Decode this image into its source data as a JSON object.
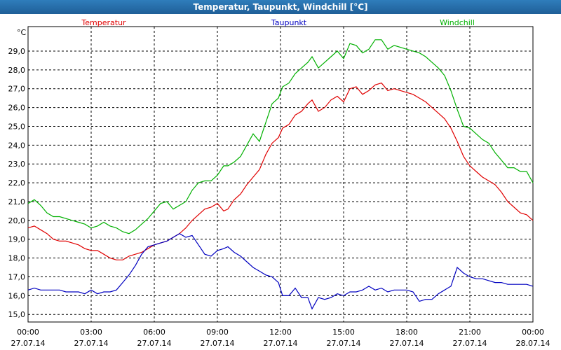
{
  "window": {
    "title": "Temperatur, Taupunkt, Windchill [°C]"
  },
  "chart_data": {
    "type": "line",
    "title": "Temperatur, Taupunkt, Windchill [°C]",
    "ylabel": "°C",
    "ylim": [
      14.6,
      30.3
    ],
    "yticks": [
      "15,0",
      "16,0",
      "17,0",
      "18,0",
      "19,0",
      "20,0",
      "21,0",
      "22,0",
      "23,0",
      "24,0",
      "25,0",
      "26,0",
      "27,0",
      "28,0",
      "29,0"
    ],
    "xlim": [
      0,
      24
    ],
    "xticks": [
      {
        "time": "00:00",
        "date": "27.07.14"
      },
      {
        "time": "03:00",
        "date": "27.07.14"
      },
      {
        "time": "06:00",
        "date": "27.07.14"
      },
      {
        "time": "09:00",
        "date": "27.07.14"
      },
      {
        "time": "12:00",
        "date": "27.07.14"
      },
      {
        "time": "15:00",
        "date": "27.07.14"
      },
      {
        "time": "18:00",
        "date": "27.07.14"
      },
      {
        "time": "21:00",
        "date": "27.07.14"
      },
      {
        "time": "00:00",
        "date": "28.07.14"
      }
    ],
    "grid": true,
    "legend_position": "top",
    "series": [
      {
        "name": "Temperatur",
        "color": "#e00000",
        "points": [
          [
            0,
            19.6
          ],
          [
            0.3,
            19.7
          ],
          [
            0.6,
            19.5
          ],
          [
            0.9,
            19.3
          ],
          [
            1.2,
            19.0
          ],
          [
            1.5,
            18.9
          ],
          [
            1.8,
            18.9
          ],
          [
            2.1,
            18.8
          ],
          [
            2.4,
            18.7
          ],
          [
            2.7,
            18.5
          ],
          [
            3.0,
            18.4
          ],
          [
            3.3,
            18.4
          ],
          [
            3.6,
            18.2
          ],
          [
            3.9,
            18.0
          ],
          [
            4.2,
            17.9
          ],
          [
            4.5,
            17.9
          ],
          [
            4.8,
            18.1
          ],
          [
            5.1,
            18.2
          ],
          [
            5.4,
            18.3
          ],
          [
            5.7,
            18.5
          ],
          [
            6.0,
            18.7
          ],
          [
            6.3,
            18.8
          ],
          [
            6.6,
            18.9
          ],
          [
            6.9,
            19.1
          ],
          [
            7.2,
            19.3
          ],
          [
            7.5,
            19.6
          ],
          [
            7.8,
            20.0
          ],
          [
            8.1,
            20.3
          ],
          [
            8.4,
            20.6
          ],
          [
            8.7,
            20.7
          ],
          [
            9.0,
            20.9
          ],
          [
            9.3,
            20.5
          ],
          [
            9.5,
            20.6
          ],
          [
            9.8,
            21.1
          ],
          [
            10.1,
            21.4
          ],
          [
            10.4,
            21.9
          ],
          [
            10.7,
            22.3
          ],
          [
            11.0,
            22.7
          ],
          [
            11.3,
            23.5
          ],
          [
            11.6,
            24.1
          ],
          [
            11.9,
            24.4
          ],
          [
            12.1,
            24.9
          ],
          [
            12.4,
            25.1
          ],
          [
            12.7,
            25.6
          ],
          [
            13.0,
            25.8
          ],
          [
            13.3,
            26.2
          ],
          [
            13.5,
            26.4
          ],
          [
            13.8,
            25.8
          ],
          [
            14.1,
            26.0
          ],
          [
            14.4,
            26.4
          ],
          [
            14.7,
            26.6
          ],
          [
            15.0,
            26.3
          ],
          [
            15.3,
            27.0
          ],
          [
            15.6,
            27.1
          ],
          [
            15.9,
            26.7
          ],
          [
            16.2,
            26.9
          ],
          [
            16.5,
            27.2
          ],
          [
            16.8,
            27.3
          ],
          [
            17.1,
            26.9
          ],
          [
            17.4,
            27.0
          ],
          [
            17.7,
            26.9
          ],
          [
            18.0,
            26.8
          ],
          [
            18.3,
            26.7
          ],
          [
            18.6,
            26.5
          ],
          [
            18.9,
            26.3
          ],
          [
            19.2,
            26.0
          ],
          [
            19.5,
            25.7
          ],
          [
            19.8,
            25.4
          ],
          [
            20.1,
            24.9
          ],
          [
            20.4,
            24.2
          ],
          [
            20.7,
            23.4
          ],
          [
            21.0,
            22.9
          ],
          [
            21.3,
            22.6
          ],
          [
            21.6,
            22.3
          ],
          [
            21.9,
            22.1
          ],
          [
            22.2,
            21.9
          ],
          [
            22.5,
            21.5
          ],
          [
            22.8,
            21.0
          ],
          [
            23.1,
            20.7
          ],
          [
            23.4,
            20.4
          ],
          [
            23.7,
            20.3
          ],
          [
            24.0,
            20.0
          ]
        ]
      },
      {
        "name": "Taupunkt",
        "color": "#0000c0",
        "points": [
          [
            0,
            16.3
          ],
          [
            0.3,
            16.4
          ],
          [
            0.6,
            16.3
          ],
          [
            0.9,
            16.3
          ],
          [
            1.2,
            16.3
          ],
          [
            1.5,
            16.3
          ],
          [
            1.8,
            16.2
          ],
          [
            2.1,
            16.2
          ],
          [
            2.4,
            16.2
          ],
          [
            2.7,
            16.1
          ],
          [
            3.0,
            16.3
          ],
          [
            3.3,
            16.1
          ],
          [
            3.6,
            16.2
          ],
          [
            3.9,
            16.2
          ],
          [
            4.2,
            16.3
          ],
          [
            4.5,
            16.7
          ],
          [
            4.8,
            17.1
          ],
          [
            5.1,
            17.6
          ],
          [
            5.4,
            18.2
          ],
          [
            5.7,
            18.6
          ],
          [
            6.0,
            18.7
          ],
          [
            6.3,
            18.8
          ],
          [
            6.6,
            18.9
          ],
          [
            6.9,
            19.1
          ],
          [
            7.2,
            19.3
          ],
          [
            7.5,
            19.1
          ],
          [
            7.8,
            19.2
          ],
          [
            8.1,
            18.7
          ],
          [
            8.4,
            18.2
          ],
          [
            8.7,
            18.1
          ],
          [
            9.0,
            18.4
          ],
          [
            9.3,
            18.5
          ],
          [
            9.5,
            18.6
          ],
          [
            9.8,
            18.3
          ],
          [
            10.1,
            18.1
          ],
          [
            10.4,
            17.8
          ],
          [
            10.7,
            17.5
          ],
          [
            11.0,
            17.3
          ],
          [
            11.3,
            17.1
          ],
          [
            11.6,
            17.0
          ],
          [
            11.9,
            16.7
          ],
          [
            12.1,
            16.0
          ],
          [
            12.4,
            16.0
          ],
          [
            12.7,
            16.4
          ],
          [
            13.0,
            15.9
          ],
          [
            13.3,
            15.9
          ],
          [
            13.5,
            15.3
          ],
          [
            13.8,
            15.9
          ],
          [
            14.1,
            15.8
          ],
          [
            14.4,
            15.9
          ],
          [
            14.7,
            16.1
          ],
          [
            15.0,
            16.0
          ],
          [
            15.3,
            16.2
          ],
          [
            15.6,
            16.2
          ],
          [
            15.9,
            16.3
          ],
          [
            16.2,
            16.5
          ],
          [
            16.5,
            16.3
          ],
          [
            16.8,
            16.4
          ],
          [
            17.1,
            16.2
          ],
          [
            17.4,
            16.3
          ],
          [
            17.7,
            16.3
          ],
          [
            18.0,
            16.3
          ],
          [
            18.3,
            16.2
          ],
          [
            18.6,
            15.7
          ],
          [
            18.9,
            15.8
          ],
          [
            19.2,
            15.8
          ],
          [
            19.5,
            16.1
          ],
          [
            19.8,
            16.3
          ],
          [
            20.1,
            16.5
          ],
          [
            20.4,
            17.5
          ],
          [
            20.7,
            17.2
          ],
          [
            21.0,
            17.0
          ],
          [
            21.3,
            16.9
          ],
          [
            21.6,
            16.9
          ],
          [
            21.9,
            16.8
          ],
          [
            22.2,
            16.7
          ],
          [
            22.5,
            16.7
          ],
          [
            22.8,
            16.6
          ],
          [
            23.1,
            16.6
          ],
          [
            23.4,
            16.6
          ],
          [
            23.7,
            16.6
          ],
          [
            24.0,
            16.5
          ]
        ]
      },
      {
        "name": "Windchill",
        "color": "#00b000",
        "points": [
          [
            0,
            20.9
          ],
          [
            0.3,
            21.1
          ],
          [
            0.6,
            20.8
          ],
          [
            0.9,
            20.4
          ],
          [
            1.2,
            20.2
          ],
          [
            1.5,
            20.2
          ],
          [
            1.8,
            20.1
          ],
          [
            2.1,
            20.0
          ],
          [
            2.4,
            19.9
          ],
          [
            2.7,
            19.8
          ],
          [
            3.0,
            19.6
          ],
          [
            3.3,
            19.7
          ],
          [
            3.6,
            19.9
          ],
          [
            3.9,
            19.7
          ],
          [
            4.2,
            19.6
          ],
          [
            4.5,
            19.4
          ],
          [
            4.8,
            19.3
          ],
          [
            5.1,
            19.5
          ],
          [
            5.4,
            19.8
          ],
          [
            5.7,
            20.1
          ],
          [
            6.0,
            20.5
          ],
          [
            6.3,
            20.9
          ],
          [
            6.6,
            21.0
          ],
          [
            6.9,
            20.6
          ],
          [
            7.2,
            20.8
          ],
          [
            7.5,
            21.0
          ],
          [
            7.8,
            21.6
          ],
          [
            8.1,
            22.0
          ],
          [
            8.4,
            22.1
          ],
          [
            8.7,
            22.1
          ],
          [
            9.0,
            22.4
          ],
          [
            9.3,
            22.9
          ],
          [
            9.5,
            22.9
          ],
          [
            9.8,
            23.1
          ],
          [
            10.1,
            23.4
          ],
          [
            10.4,
            24.0
          ],
          [
            10.7,
            24.6
          ],
          [
            11.0,
            24.2
          ],
          [
            11.3,
            25.2
          ],
          [
            11.6,
            26.2
          ],
          [
            11.9,
            26.5
          ],
          [
            12.1,
            27.1
          ],
          [
            12.4,
            27.3
          ],
          [
            12.7,
            27.8
          ],
          [
            13.0,
            28.1
          ],
          [
            13.3,
            28.4
          ],
          [
            13.5,
            28.7
          ],
          [
            13.8,
            28.1
          ],
          [
            14.1,
            28.4
          ],
          [
            14.4,
            28.7
          ],
          [
            14.7,
            29.0
          ],
          [
            15.0,
            28.6
          ],
          [
            15.3,
            29.4
          ],
          [
            15.6,
            29.3
          ],
          [
            15.9,
            28.9
          ],
          [
            16.2,
            29.1
          ],
          [
            16.5,
            29.6
          ],
          [
            16.8,
            29.6
          ],
          [
            17.1,
            29.1
          ],
          [
            17.4,
            29.3
          ],
          [
            17.7,
            29.2
          ],
          [
            18.0,
            29.1
          ],
          [
            18.3,
            29.0
          ],
          [
            18.6,
            28.9
          ],
          [
            18.9,
            28.7
          ],
          [
            19.2,
            28.4
          ],
          [
            19.5,
            28.1
          ],
          [
            19.8,
            27.7
          ],
          [
            20.1,
            26.9
          ],
          [
            20.4,
            25.9
          ],
          [
            20.7,
            25.0
          ],
          [
            21.0,
            24.9
          ],
          [
            21.3,
            24.6
          ],
          [
            21.6,
            24.3
          ],
          [
            21.9,
            24.1
          ],
          [
            22.2,
            23.6
          ],
          [
            22.5,
            23.2
          ],
          [
            22.8,
            22.8
          ],
          [
            23.1,
            22.8
          ],
          [
            23.4,
            22.6
          ],
          [
            23.7,
            22.6
          ],
          [
            24.0,
            22.0
          ]
        ]
      }
    ]
  }
}
